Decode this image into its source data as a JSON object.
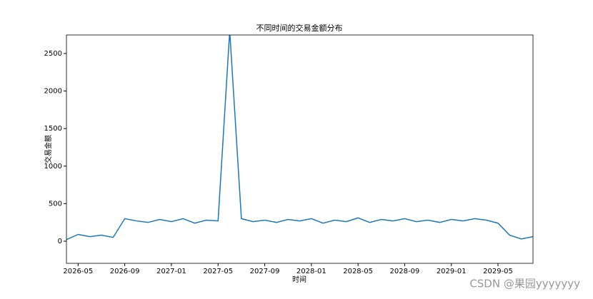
{
  "chart_data": {
    "type": "line",
    "title": "不同时间的交易金额分布",
    "x_label": "时间",
    "y_label": "交易金额",
    "x": [
      "2026-04",
      "2026-05",
      "2026-06",
      "2026-07",
      "2026-08",
      "2026-09",
      "2026-10",
      "2026-11",
      "2026-12",
      "2027-01",
      "2027-02",
      "2027-03",
      "2027-04",
      "2027-05",
      "2027-06",
      "2027-07",
      "2027-08",
      "2027-09",
      "2027-10",
      "2027-11",
      "2027-12",
      "2028-01",
      "2028-02",
      "2028-03",
      "2028-04",
      "2028-05",
      "2028-06",
      "2028-07",
      "2028-08",
      "2028-09",
      "2028-10",
      "2028-11",
      "2028-12",
      "2029-01",
      "2029-02",
      "2029-03",
      "2029-04",
      "2029-05",
      "2029-06",
      "2029-07",
      "2029-08"
    ],
    "series": [
      {
        "name": "交易金额",
        "color": "#1f77b4",
        "values": [
          20,
          90,
          60,
          80,
          50,
          300,
          270,
          250,
          290,
          260,
          300,
          240,
          280,
          270,
          2800,
          300,
          260,
          280,
          250,
          290,
          270,
          300,
          240,
          280,
          260,
          310,
          250,
          290,
          270,
          300,
          260,
          280,
          250,
          290,
          270,
          300,
          280,
          240,
          80,
          30,
          60
        ]
      }
    ],
    "xlim": [
      "2026-04",
      "2029-08"
    ],
    "xticks": [
      "2026-05",
      "2026-09",
      "2027-01",
      "2027-05",
      "2027-09",
      "2028-01",
      "2028-05",
      "2028-09",
      "2029-01",
      "2029-05"
    ],
    "ylim": [
      -295,
      2747
    ],
    "yticks": [
      0,
      500,
      1000,
      1500,
      2000,
      2500
    ],
    "grid": false,
    "watermark": "CSDN @果园yyyyyyy"
  }
}
